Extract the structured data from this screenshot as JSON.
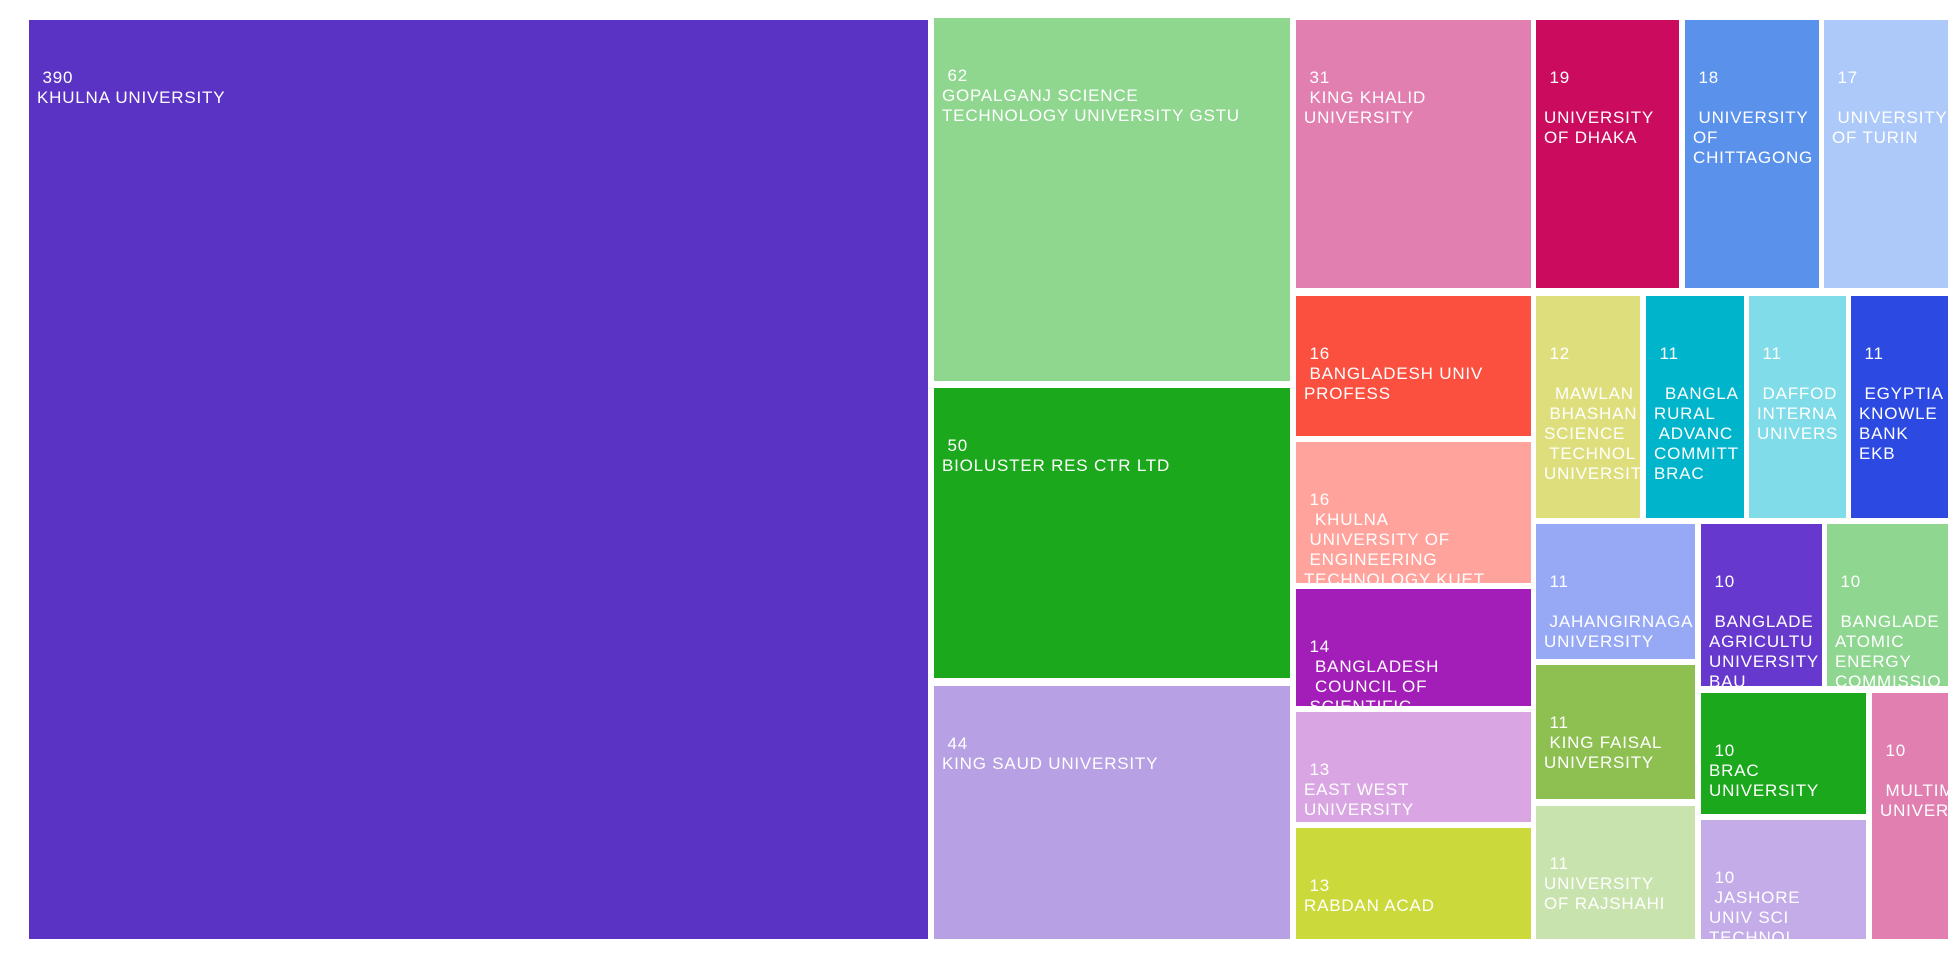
{
  "canvas": {
    "background": "#ffffff",
    "label_text_color": "#ffffff"
  },
  "chart_data": {
    "type": "treemap",
    "title": "",
    "legend": false,
    "value_meaning": "record count per institution",
    "items": [
      {
        "id": "khulna",
        "value": 390,
        "label": "KHULNA UNIVERSITY",
        "color": "#5b33c4",
        "lines": [
          " 390",
          "KHULNA UNIVERSITY"
        ]
      },
      {
        "id": "gopalganj",
        "value": 62,
        "label": "GOPALGANJ SCIENCE TECHNOLOGY UNIVERSITY GSTU",
        "color": "#8fd68f",
        "lines": [
          " 62",
          "GOPALGANJ SCIENCE",
          "TECHNOLOGY UNIVERSITY GSTU"
        ]
      },
      {
        "id": "bioluster",
        "value": 50,
        "label": "BIOLUSTER RES CTR LTD",
        "color": "#1ca81c",
        "lines": [
          " 50",
          "BIOLUSTER RES CTR LTD"
        ]
      },
      {
        "id": "kingsaud",
        "value": 44,
        "label": "KING SAUD UNIVERSITY",
        "color": "#b7a0e3",
        "lines": [
          " 44",
          "KING SAUD UNIVERSITY"
        ]
      },
      {
        "id": "kingkhalid",
        "value": 31,
        "label": "KING KHALID UNIVERSITY",
        "color": "#e27fb1",
        "lines": [
          " 31",
          " KING KHALID",
          "UNIVERSITY"
        ]
      },
      {
        "id": "dhaka",
        "value": 19,
        "label": "UNIVERSITY OF DHAKA",
        "color": "#cb0b5d",
        "lines": [
          " 19",
          "",
          "UNIVERSITY",
          "OF DHAKA"
        ]
      },
      {
        "id": "chittagong",
        "value": 18,
        "label": "UNIVERSITY OF CHITTAGONG",
        "color": "#5a91ea",
        "lines": [
          " 18",
          "",
          " UNIVERSITY",
          "OF",
          "CHITTAGONG"
        ]
      },
      {
        "id": "turin",
        "value": 17,
        "label": "UNIVERSITY OF TURIN",
        "color": "#acc9fa",
        "lines": [
          " 17",
          "",
          " UNIVERSITY",
          "OF TURIN"
        ]
      },
      {
        "id": "profess",
        "value": 16,
        "label": "BANGLADESH UNIV PROFESS",
        "color": "#fb4f3f",
        "lines": [
          " 16",
          " BANGLADESH UNIV",
          "PROFESS"
        ]
      },
      {
        "id": "kuet",
        "value": 16,
        "label": "KHULNA UNIVERSITY OF ENGINEERING TECHNOLOGY KUET",
        "color": "#ffa39c",
        "lines": [
          " 16",
          "  KHULNA",
          " UNIVERSITY OF",
          " ENGINEERING",
          "TECHNOLOGY KUET"
        ]
      },
      {
        "id": "council",
        "value": 14,
        "label": "BANGLADESH COUNCIL OF SCIENTIFIC",
        "color": "#a31eb8",
        "lines": [
          " 14",
          "  BANGLADESH",
          "  COUNCIL OF",
          " SCIENTIFIC"
        ]
      },
      {
        "id": "eastwest",
        "value": 13,
        "label": "EAST WEST UNIVERSITY",
        "color": "#d9a6e3",
        "lines": [
          " 13",
          "EAST WEST",
          "UNIVERSITY"
        ]
      },
      {
        "id": "rabdan",
        "value": 13,
        "label": "RABDAN ACAD",
        "color": "#cbda3a",
        "lines": [
          " 13",
          "RABDAN ACAD"
        ]
      },
      {
        "id": "mawlan",
        "value": 12,
        "label": "MAWLAN BHASHAN SCIENCE TECHNOL UNIVERSIT",
        "color": "#dedf7c",
        "lines": [
          " 12",
          "",
          "  MAWLAN",
          " BHASHAN",
          "SCIENCE",
          " TECHNOL",
          "UNIVERSIT"
        ]
      },
      {
        "id": "bracteal",
        "value": 11,
        "label": "BANGLA RURAL ADVANC COMMITT BRAC",
        "color": "#00b5cb",
        "lines": [
          " 11",
          "",
          "  BANGLA",
          "RURAL",
          " ADVANC",
          "COMMITT",
          "BRAC"
        ]
      },
      {
        "id": "daffodil",
        "value": 11,
        "label": "DAFFOD INTERNA UNIVERS",
        "color": "#7fdce8",
        "lines": [
          " 11",
          "",
          " DAFFOD",
          "INTERNA",
          "UNIVERS"
        ]
      },
      {
        "id": "egyptian",
        "value": 11,
        "label": "EGYPTIA KNOWLE BANK EKB",
        "color": "#2c49e2",
        "lines": [
          " 11",
          "",
          " EGYPTIA",
          "KNOWLE",
          "BANK",
          "EKB"
        ]
      },
      {
        "id": "jahangirnagar",
        "value": 11,
        "label": "JAHANGIRNAGA UNIVERSITY",
        "color": "#97a9f5",
        "lines": [
          " 11",
          "",
          " JAHANGIRNAGA",
          "UNIVERSITY"
        ]
      },
      {
        "id": "kingfaisal",
        "value": 11,
        "label": "KING FAISAL UNIVERSITY",
        "color": "#8ec051",
        "lines": [
          " 11",
          " KING FAISAL",
          "UNIVERSITY"
        ]
      },
      {
        "id": "rajshahi",
        "value": 11,
        "label": "UNIVERSITY OF RAJSHAHI",
        "color": "#c9e3ae",
        "lines": [
          " 11",
          "UNIVERSITY",
          "OF RAJSHAHI"
        ]
      },
      {
        "id": "bau",
        "value": 10,
        "label": "BANGLADE AGRICULTU UNIVERSITY BAU",
        "color": "#6638ce",
        "lines": [
          " 10",
          "",
          " BANGLADE",
          "AGRICULTU",
          "UNIVERSITY",
          "BAU"
        ]
      },
      {
        "id": "atomic",
        "value": 10,
        "label": "BANGLADE ATOMIC ENERGY COMMISSIO",
        "color": "#8fd691",
        "lines": [
          " 10",
          "",
          " BANGLADE",
          "ATOMIC",
          "ENERGY",
          "COMMISSIO"
        ]
      },
      {
        "id": "bracuniv",
        "value": 10,
        "label": "BRAC UNIVERSITY",
        "color": "#1ca81c",
        "lines": [
          " 10",
          "BRAC",
          "UNIVERSITY"
        ]
      },
      {
        "id": "multimedia",
        "value": 10,
        "label": "MULTIM UNIVER",
        "color": "#e27fb1",
        "lines": [
          " 10",
          "",
          " MULTIM",
          "UNIVER"
        ]
      },
      {
        "id": "jashore",
        "value": 10,
        "label": "JASHORE UNIV SCI TECHNOL",
        "color": "#c3ace8",
        "lines": [
          " 10",
          " JASHORE",
          "UNIV SCI",
          "TECHNOL"
        ]
      }
    ]
  }
}
